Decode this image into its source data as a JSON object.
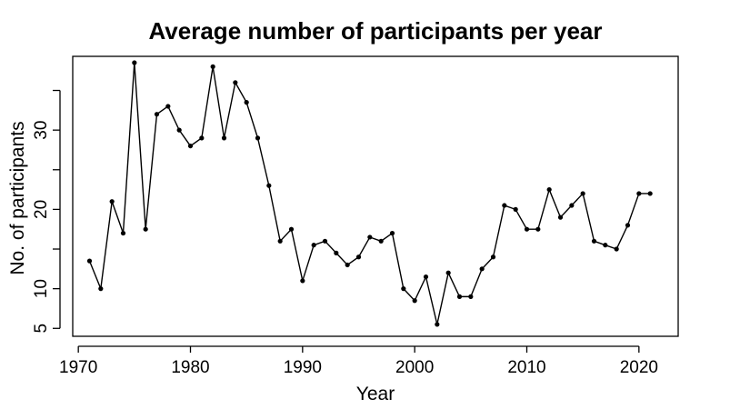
{
  "chart_data": {
    "type": "line",
    "title": "Average number of participants per year",
    "xlabel": "Year",
    "ylabel": "No. of participants",
    "xlim": [
      1969.5,
      2023.5
    ],
    "ylim": [
      4.0,
      39.3
    ],
    "x_ticks": [
      1970,
      1980,
      1990,
      2000,
      2010,
      2020
    ],
    "y_ticks": [
      5,
      10,
      15,
      20,
      25,
      30,
      35
    ],
    "y_tick_labels": [
      "5",
      "10",
      "",
      "20",
      "",
      "30",
      ""
    ],
    "grid": false,
    "legend": "none",
    "colors": {
      "line": "#000000",
      "points": "#000000"
    },
    "series": [
      {
        "x": [
          1971,
          1972,
          1973,
          1974,
          1975,
          1976,
          1977,
          1978,
          1979,
          1980,
          1981,
          1982,
          1983,
          1984,
          1985,
          1986,
          1987,
          1988,
          1989,
          1990,
          1991,
          1992,
          1993,
          1994,
          1995,
          1996,
          1997,
          1998,
          1999,
          2000,
          2001,
          2002,
          2003,
          2004,
          2005,
          2006,
          2007,
          2008,
          2009,
          2010,
          2011,
          2012,
          2013,
          2014,
          2015,
          2016,
          2017,
          2018,
          2019,
          2020,
          2021
        ],
        "y": [
          13.5,
          10,
          21,
          17,
          38.5,
          17.5,
          32,
          33,
          30,
          28,
          29,
          38,
          29,
          36,
          33.5,
          29,
          23,
          16,
          17.5,
          11,
          15.5,
          16,
          14.5,
          13,
          14,
          16.5,
          16,
          17,
          10,
          8.5,
          11.5,
          5.5,
          12,
          9,
          9,
          12.5,
          14,
          20.5,
          20,
          17.5,
          17.5,
          22.5,
          19,
          20.5,
          22,
          16,
          15.5,
          15,
          18,
          22,
          22
        ]
      }
    ]
  }
}
